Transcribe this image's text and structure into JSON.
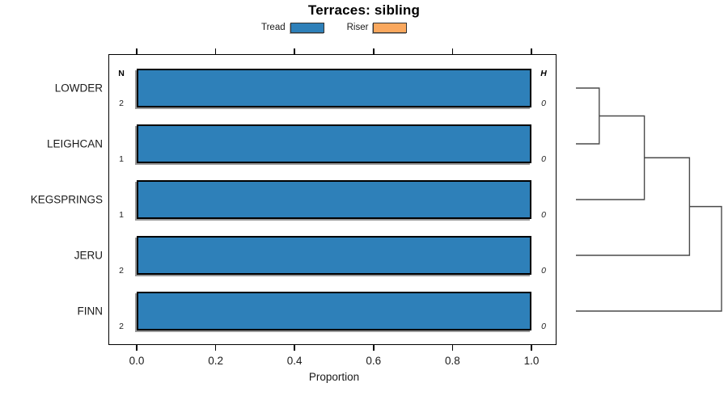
{
  "title": "Terraces: sibling",
  "legend": [
    {
      "label": "Tread",
      "color": "#2E80B9"
    },
    {
      "label": "Riser",
      "color": "#FAA85E"
    }
  ],
  "chart_data": {
    "type": "bar",
    "orientation": "horizontal",
    "title": "Terraces: sibling",
    "xlabel": "Proportion",
    "xlim": [
      0,
      1.08
    ],
    "xticks": [
      0.0,
      0.2,
      0.4,
      0.6,
      0.8,
      1.0
    ],
    "xtick_labels": [
      "0.0",
      "0.2",
      "0.4",
      "0.6",
      "0.8",
      "1.0"
    ],
    "grid": false,
    "legend_position": "top-center",
    "categories": [
      "LOWDER",
      "LEIGHCAN",
      "KEGSPRINGS",
      "JERU",
      "FINN"
    ],
    "series": [
      {
        "name": "Tread",
        "color": "#2E80B9",
        "values": [
          1.0,
          1.0,
          1.0,
          1.0,
          1.0
        ]
      },
      {
        "name": "Riser",
        "color": "#FAA85E",
        "values": [
          0,
          0,
          0,
          0,
          0
        ]
      }
    ],
    "n_column": {
      "header": "N",
      "values": [
        "2",
        "1",
        "1",
        "2",
        "2"
      ]
    },
    "h_column": {
      "header": "H",
      "values": [
        "0",
        "0",
        "0",
        "0",
        "0"
      ]
    },
    "dendrogram": {
      "side": "right",
      "leaf_order": [
        "LOWDER",
        "LEIGHCAN",
        "KEGSPRINGS",
        "JERU",
        "FINN"
      ],
      "merges": [
        {
          "a": "L0",
          "b": "L1",
          "height": 0.16
        },
        {
          "a": "N0",
          "b": "L2",
          "height": 0.47
        },
        {
          "a": "N1",
          "b": "L3",
          "height": 0.78
        },
        {
          "a": "N2",
          "b": "L4",
          "height": 1.0
        }
      ]
    }
  }
}
